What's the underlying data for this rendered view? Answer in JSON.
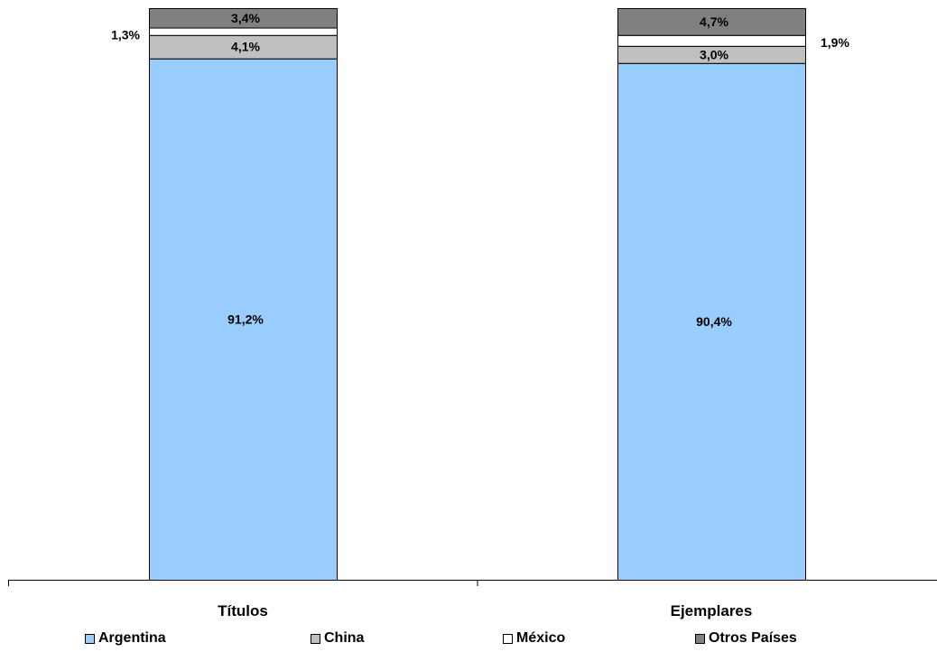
{
  "chart_data": {
    "type": "bar",
    "stacked": true,
    "categories": [
      "Títulos",
      "Ejemplares"
    ],
    "series": [
      {
        "name": "Argentina",
        "color": "#99ccff",
        "values": [
          91.2,
          90.4
        ],
        "labels": [
          "91,2%",
          "90,4%"
        ]
      },
      {
        "name": "China",
        "color": "#c0c0c0",
        "values": [
          4.1,
          3.0
        ],
        "labels": [
          "4,1%",
          "3,0%"
        ]
      },
      {
        "name": "México",
        "color": "#ffffff",
        "values": [
          1.3,
          1.9
        ],
        "labels": [
          "1,3%",
          "1,9%"
        ]
      },
      {
        "name": "Otros Países",
        "color": "#808080",
        "values": [
          3.4,
          4.7
        ],
        "labels": [
          "3,4%",
          "4,7%"
        ]
      }
    ],
    "ylim": [
      0,
      100
    ],
    "grid": false,
    "legend_position": "bottom"
  }
}
